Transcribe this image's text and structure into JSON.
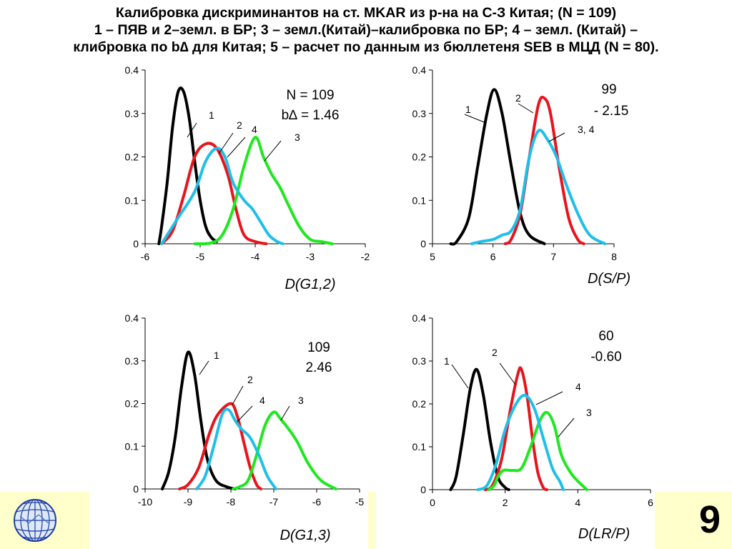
{
  "slide": {
    "title_lines": [
      "Калибровка дискриминантов на ст. MKAR из р-на на С-З Китая; (N = 109)",
      "1 – ПЯВ и 2–земл. в БР; 3 – земл.(Китай)–калибровка по БР; 4 – земл. (Китай) –",
      "клибровка по b∆ для Китая; 5 – расчет по данным из бюллетеня SEB в МЦД (N = 80)."
    ],
    "page_number": "9",
    "colors": {
      "black": "#000000",
      "red": "#e8141c",
      "cyan": "#20bfe8",
      "green": "#1ee81e"
    }
  },
  "chart_data": [
    {
      "type": "line",
      "xlabel": "D(G1,2)",
      "xlim": [
        -6,
        -2
      ],
      "ylim": [
        0,
        0.4
      ],
      "xticks": [
        "-6",
        "-5",
        "-4",
        "-3",
        "-2"
      ],
      "yticks": [
        "0",
        "0.1",
        "0.2",
        "0.3",
        "0.4"
      ],
      "annotations": [
        "N = 109",
        "b∆ = 1.46"
      ],
      "series": [
        {
          "name": "1",
          "color": "#000000",
          "points": [
            [
              -5.75,
              0
            ],
            [
              -5.7,
              0.04
            ],
            [
              -5.6,
              0.14
            ],
            [
              -5.5,
              0.27
            ],
            [
              -5.4,
              0.35
            ],
            [
              -5.3,
              0.35
            ],
            [
              -5.2,
              0.29
            ],
            [
              -5.1,
              0.19
            ],
            [
              -5.0,
              0.1
            ],
            [
              -4.9,
              0.04
            ],
            [
              -4.8,
              0.015
            ],
            [
              -4.7,
              0.005
            ]
          ]
        },
        {
          "name": "2",
          "color": "#e8141c",
          "points": [
            [
              -5.7,
              0
            ],
            [
              -5.5,
              0.03
            ],
            [
              -5.3,
              0.11
            ],
            [
              -5.1,
              0.2
            ],
            [
              -4.9,
              0.23
            ],
            [
              -4.7,
              0.22
            ],
            [
              -4.5,
              0.16
            ],
            [
              -4.35,
              0.08
            ],
            [
              -4.2,
              0.02
            ],
            [
              -4.0,
              0.005
            ],
            [
              -3.8,
              0
            ]
          ]
        },
        {
          "name": "3",
          "color": "#1ee81e",
          "points": [
            [
              -5.1,
              0
            ],
            [
              -4.8,
              0.002
            ],
            [
              -4.6,
              0.02
            ],
            [
              -4.4,
              0.08
            ],
            [
              -4.2,
              0.18
            ],
            [
              -4.0,
              0.245
            ],
            [
              -3.85,
              0.2
            ],
            [
              -3.7,
              0.16
            ],
            [
              -3.55,
              0.13
            ],
            [
              -3.4,
              0.09
            ],
            [
              -3.2,
              0.04
            ],
            [
              -3.0,
              0.01
            ],
            [
              -2.8,
              0.005
            ],
            [
              -2.6,
              0
            ]
          ]
        },
        {
          "name": "4",
          "color": "#20bfe8",
          "points": [
            [
              -5.7,
              0
            ],
            [
              -5.4,
              0.06
            ],
            [
              -5.1,
              0.12
            ],
            [
              -4.9,
              0.19
            ],
            [
              -4.7,
              0.22
            ],
            [
              -4.55,
              0.2
            ],
            [
              -4.4,
              0.14
            ],
            [
              -4.2,
              0.1
            ],
            [
              -4.05,
              0.08
            ],
            [
              -3.9,
              0.05
            ],
            [
              -3.75,
              0.02
            ],
            [
              -3.6,
              0.005
            ],
            [
              -3.5,
              0
            ]
          ]
        }
      ]
    },
    {
      "type": "line",
      "xlabel": "D(S/P)",
      "xlim": [
        5,
        8
      ],
      "ylim": [
        0,
        0.4
      ],
      "xticks": [
        "5",
        "6",
        "7",
        "8"
      ],
      "yticks": [
        "0",
        "0.1",
        "0.2",
        "0.3",
        "0.4"
      ],
      "annotations": [
        "99",
        "- 2.15"
      ],
      "series": [
        {
          "name": "1",
          "color": "#000000",
          "points": [
            [
              5.3,
              0
            ],
            [
              5.4,
              0.005
            ],
            [
              5.6,
              0.06
            ],
            [
              5.75,
              0.18
            ],
            [
              5.9,
              0.3
            ],
            [
              6.02,
              0.355
            ],
            [
              6.15,
              0.3
            ],
            [
              6.3,
              0.18
            ],
            [
              6.45,
              0.07
            ],
            [
              6.6,
              0.02
            ],
            [
              6.85,
              0
            ]
          ]
        },
        {
          "name": "2",
          "color": "#e8141c",
          "points": [
            [
              6.2,
              0
            ],
            [
              6.3,
              0.01
            ],
            [
              6.45,
              0.07
            ],
            [
              6.6,
              0.2
            ],
            [
              6.75,
              0.32
            ],
            [
              6.85,
              0.335
            ],
            [
              6.95,
              0.3
            ],
            [
              7.1,
              0.17
            ],
            [
              7.25,
              0.06
            ],
            [
              7.4,
              0.01
            ],
            [
              7.5,
              0
            ]
          ]
        },
        {
          "name": "3, 4",
          "color": "#20bfe8",
          "points": [
            [
              5.65,
              0
            ],
            [
              5.8,
              0.005
            ],
            [
              6.0,
              0.01
            ],
            [
              6.15,
              0.02
            ],
            [
              6.3,
              0.03
            ],
            [
              6.45,
              0.08
            ],
            [
              6.6,
              0.2
            ],
            [
              6.75,
              0.26
            ],
            [
              6.9,
              0.24
            ],
            [
              7.05,
              0.2
            ],
            [
              7.2,
              0.14
            ],
            [
              7.4,
              0.07
            ],
            [
              7.6,
              0.02
            ],
            [
              7.85,
              0
            ]
          ]
        }
      ]
    },
    {
      "type": "line",
      "xlabel": "D(G1,3)",
      "xlim": [
        -10,
        -5
      ],
      "ylim": [
        0,
        0.4
      ],
      "xticks": [
        "-10",
        "-9",
        "-8",
        "-7",
        "-6",
        "-5"
      ],
      "yticks": [
        "0",
        "0.1",
        "0.2",
        "0.3",
        "0.4"
      ],
      "annotations": [
        "109",
        "2.46"
      ],
      "series": [
        {
          "name": "1",
          "color": "#000000",
          "points": [
            [
              -9.6,
              0
            ],
            [
              -9.45,
              0.04
            ],
            [
              -9.3,
              0.12
            ],
            [
              -9.15,
              0.24
            ],
            [
              -9.0,
              0.32
            ],
            [
              -8.85,
              0.27
            ],
            [
              -8.7,
              0.16
            ],
            [
              -8.55,
              0.07
            ],
            [
              -8.35,
              0.02
            ],
            [
              -8.1,
              0.005
            ],
            [
              -7.9,
              0
            ]
          ]
        },
        {
          "name": "2",
          "color": "#e8141c",
          "points": [
            [
              -9.2,
              0
            ],
            [
              -9.0,
              0.01
            ],
            [
              -8.75,
              0.05
            ],
            [
              -8.5,
              0.13
            ],
            [
              -8.3,
              0.175
            ],
            [
              -8.0,
              0.2
            ],
            [
              -7.85,
              0.17
            ],
            [
              -7.7,
              0.11
            ],
            [
              -7.55,
              0.05
            ],
            [
              -7.4,
              0.01
            ],
            [
              -7.3,
              0
            ]
          ]
        },
        {
          "name": "3",
          "color": "#1ee81e",
          "points": [
            [
              -7.95,
              0
            ],
            [
              -7.8,
              0.005
            ],
            [
              -7.6,
              0.02
            ],
            [
              -7.4,
              0.08
            ],
            [
              -7.2,
              0.15
            ],
            [
              -7.0,
              0.18
            ],
            [
              -6.85,
              0.165
            ],
            [
              -6.65,
              0.14
            ],
            [
              -6.45,
              0.11
            ],
            [
              -6.2,
              0.06
            ],
            [
              -5.9,
              0.02
            ],
            [
              -5.55,
              0
            ]
          ]
        },
        {
          "name": "4",
          "color": "#20bfe8",
          "points": [
            [
              -8.8,
              0
            ],
            [
              -8.6,
              0.03
            ],
            [
              -8.4,
              0.1
            ],
            [
              -8.2,
              0.175
            ],
            [
              -8.05,
              0.185
            ],
            [
              -7.9,
              0.16
            ],
            [
              -7.75,
              0.14
            ],
            [
              -7.55,
              0.12
            ],
            [
              -7.35,
              0.08
            ],
            [
              -7.15,
              0.03
            ],
            [
              -6.95,
              0
            ]
          ]
        }
      ]
    },
    {
      "type": "line",
      "xlabel": "D(LR/P)",
      "xlim": [
        0,
        6
      ],
      "ylim": [
        0,
        0.4
      ],
      "xticks": [
        "0",
        "2",
        "4",
        "6"
      ],
      "yticks": [
        "0",
        "0.1",
        "0.2",
        "0.3",
        "0.4"
      ],
      "annotations": [
        "60",
        "-0.60"
      ],
      "series": [
        {
          "name": "1",
          "color": "#000000",
          "points": [
            [
              0.5,
              0
            ],
            [
              0.65,
              0.03
            ],
            [
              0.85,
              0.13
            ],
            [
              1.05,
              0.24
            ],
            [
              1.22,
              0.28
            ],
            [
              1.4,
              0.22
            ],
            [
              1.6,
              0.11
            ],
            [
              1.8,
              0.03
            ],
            [
              2.0,
              0.005
            ],
            [
              2.1,
              0
            ]
          ]
        },
        {
          "name": "2",
          "color": "#e8141c",
          "points": [
            [
              1.45,
              0
            ],
            [
              1.65,
              0.01
            ],
            [
              1.9,
              0.07
            ],
            [
              2.15,
              0.19
            ],
            [
              2.35,
              0.27
            ],
            [
              2.45,
              0.28
            ],
            [
              2.6,
              0.22
            ],
            [
              2.75,
              0.12
            ],
            [
              2.9,
              0.04
            ],
            [
              3.05,
              0.005
            ],
            [
              3.15,
              0
            ]
          ]
        },
        {
          "name": "3",
          "color": "#1ee81e",
          "points": [
            [
              1.55,
              0
            ],
            [
              1.7,
              0.01
            ],
            [
              1.8,
              0.03
            ],
            [
              1.95,
              0.045
            ],
            [
              2.2,
              0.045
            ],
            [
              2.45,
              0.05
            ],
            [
              2.7,
              0.1
            ],
            [
              2.95,
              0.16
            ],
            [
              3.15,
              0.18
            ],
            [
              3.35,
              0.15
            ],
            [
              3.55,
              0.08
            ],
            [
              3.8,
              0.04
            ],
            [
              4.0,
              0.02
            ],
            [
              4.25,
              0
            ]
          ]
        },
        {
          "name": "4",
          "color": "#20bfe8",
          "points": [
            [
              1.25,
              0
            ],
            [
              1.5,
              0.01
            ],
            [
              1.75,
              0.06
            ],
            [
              2.0,
              0.14
            ],
            [
              2.3,
              0.2
            ],
            [
              2.55,
              0.22
            ],
            [
              2.8,
              0.19
            ],
            [
              3.05,
              0.12
            ],
            [
              3.3,
              0.05
            ],
            [
              3.5,
              0.02
            ],
            [
              3.6,
              0
            ]
          ]
        }
      ]
    }
  ]
}
